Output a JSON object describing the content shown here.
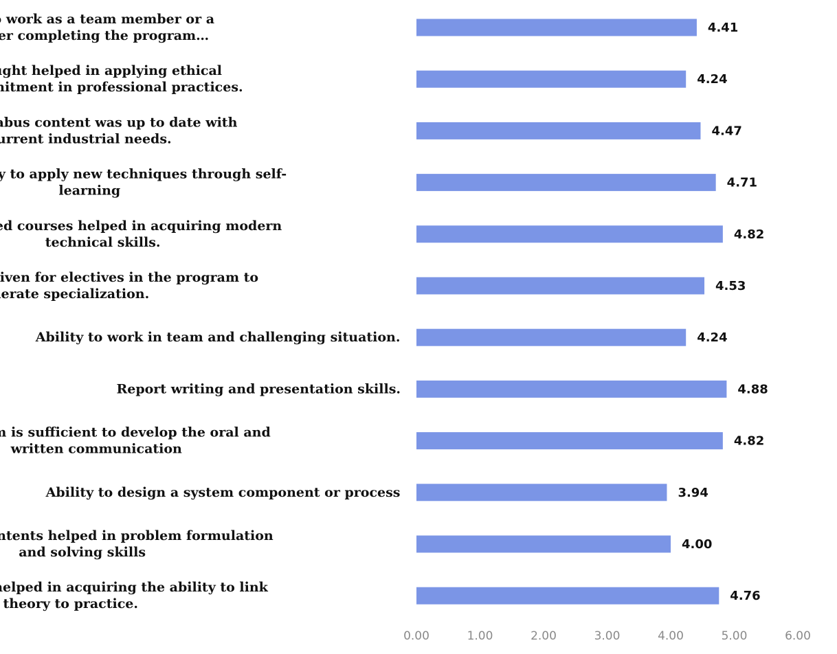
{
  "chart_data": {
    "type": "bar",
    "orientation": "horizontal",
    "categories": [
      [
        "Acquired the ability to work as a team member or a",
        "leader in industry after completing the program…"
      ],
      [
        "The courses taught helped in applying ethical",
        "practice and commitment in professional practices."
      ],
      [
        "The relevance of syllabus content was up to date with",
        "respect to current industrial needs."
      ],
      [
        "Rate the ability to apply new techniques through self-",
        "learning"
      ],
      [
        "Value added courses helped in acquiring modern",
        "technical skills."
      ],
      [
        "Rate the options given for electives in the program to",
        "generate specialization."
      ],
      [
        "Ability to work in team and challenging situation."
      ],
      [
        "Report writing and presentation skills."
      ],
      [
        "Curriculum is sufficient to develop the oral and",
        "written communication"
      ],
      [
        "Ability to design a system component or process"
      ],
      [
        "Curriculum contents helped in problem formulation",
        "and solving skills"
      ],
      [
        "Various courses helped in acquiring the ability to link",
        "theory to practice."
      ]
    ],
    "values": [
      4.41,
      4.24,
      4.47,
      4.71,
      4.82,
      4.53,
      4.24,
      4.88,
      4.82,
      3.94,
      4.0,
      4.76
    ],
    "value_labels": [
      "4.41",
      "4.24",
      "4.47",
      "4.71",
      "4.82",
      "4.53",
      "4.24",
      "4.88",
      "4.82",
      "3.94",
      "4.00",
      "4.76"
    ],
    "x_ticks": [
      "0.00",
      "1.00",
      "2.00",
      "3.00",
      "4.00",
      "5.00",
      "6.00"
    ],
    "xlim": [
      0,
      6
    ],
    "bar_color": "#7b95e6",
    "grid": false,
    "legend": "none"
  }
}
